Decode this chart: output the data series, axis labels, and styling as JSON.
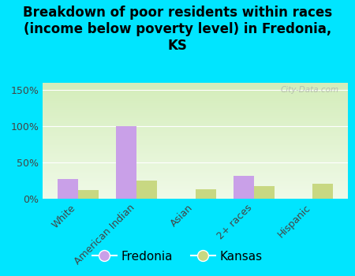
{
  "title": "Breakdown of poor residents within races\n(income below poverty level) in Fredonia,\nKS",
  "categories": [
    "White",
    "American Indian",
    "Asian",
    "2+ races",
    "Hispanic"
  ],
  "fredonia_values": [
    27,
    100,
    0,
    32,
    0
  ],
  "kansas_values": [
    12,
    25,
    13,
    17,
    21
  ],
  "fredonia_color": "#c9a0e8",
  "kansas_color": "#c8d882",
  "background_color": "#00e5ff",
  "grad_top": "#d4edba",
  "grad_bottom": "#f0fae8",
  "bar_width": 0.35,
  "ylim": [
    0,
    160
  ],
  "yticks": [
    0,
    50,
    100,
    150
  ],
  "ytick_labels": [
    "0%",
    "50%",
    "100%",
    "150%"
  ],
  "legend_labels": [
    "Fredonia",
    "Kansas"
  ],
  "watermark": "City-Data.com",
  "title_fontsize": 12,
  "tick_fontsize": 9,
  "legend_fontsize": 11
}
